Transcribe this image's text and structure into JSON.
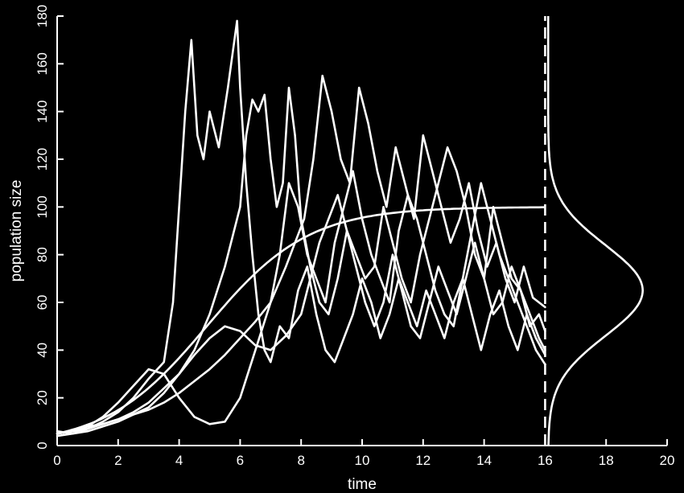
{
  "chart_data": {
    "type": "line",
    "xlabel": "time",
    "ylabel": "population size",
    "xlim": [
      0,
      20
    ],
    "ylim": [
      0,
      180
    ],
    "xticks": [
      0,
      2,
      4,
      6,
      8,
      10,
      12,
      14,
      16,
      18,
      20
    ],
    "yticks": [
      0,
      20,
      40,
      60,
      80,
      100,
      120,
      140,
      160,
      180
    ],
    "logistic": {
      "K": 100,
      "N0": 5,
      "r": 0.6,
      "t_end": 16
    },
    "marker_time": 16,
    "stationary_density": {
      "mean": 65,
      "sd": 19,
      "peak_x": 19.2,
      "base_x": 16.1
    },
    "series": [
      {
        "x": [
          0,
          0.5,
          1,
          1.5,
          2,
          2.5,
          3,
          3.5,
          3.8,
          4,
          4.2,
          4.4,
          4.6,
          4.8,
          5,
          5.3,
          5.6,
          5.9,
          6,
          6.2,
          6.4,
          6.6,
          6.8,
          7,
          7.3,
          7.6,
          7.9,
          8.2,
          8.5,
          8.8,
          9.1,
          9.4,
          9.7,
          10,
          10.3,
          10.6,
          10.9,
          11.2,
          11.5,
          11.8,
          12.1,
          12.4,
          12.7,
          13,
          13.3,
          13.6,
          13.9,
          14.2,
          14.5,
          14.8,
          15.1,
          15.4,
          15.7,
          16
        ],
        "y": [
          6,
          5,
          7,
          10,
          14,
          20,
          28,
          35,
          60,
          100,
          140,
          170,
          130,
          120,
          140,
          125,
          150,
          178,
          150,
          110,
          80,
          55,
          40,
          35,
          50,
          45,
          65,
          75,
          55,
          40,
          35,
          45,
          55,
          70,
          60,
          45,
          55,
          70,
          60,
          50,
          65,
          55,
          45,
          60,
          70,
          55,
          40,
          55,
          65,
          50,
          40,
          55,
          45,
          38
        ]
      },
      {
        "x": [
          0,
          0.5,
          1,
          1.5,
          2,
          2.5,
          3,
          3.5,
          4,
          4.5,
          5,
          5.5,
          6,
          6.2,
          6.4,
          6.6,
          6.8,
          7,
          7.2,
          7.4,
          7.6,
          7.8,
          8,
          8.3,
          8.6,
          8.9,
          9.2,
          9.5,
          9.8,
          10.1,
          10.4,
          10.7,
          11,
          11.3,
          11.6,
          11.9,
          12.2,
          12.5,
          12.8,
          13.1,
          13.4,
          13.7,
          14,
          14.3,
          14.6,
          14.9,
          15.2,
          15.5,
          15.8,
          16
        ],
        "y": [
          5,
          6,
          8,
          9,
          11,
          13,
          16,
          22,
          30,
          40,
          55,
          75,
          100,
          130,
          145,
          140,
          147,
          120,
          100,
          110,
          150,
          130,
          95,
          75,
          60,
          55,
          70,
          90,
          75,
          60,
          50,
          60,
          80,
          65,
          50,
          45,
          60,
          75,
          65,
          55,
          70,
          85,
          70,
          55,
          60,
          75,
          65,
          50,
          55,
          48
        ]
      },
      {
        "x": [
          0,
          0.5,
          1,
          1.5,
          2,
          2.5,
          3,
          3.5,
          4,
          4.5,
          5,
          5.5,
          6,
          6.5,
          7,
          7.5,
          7.8,
          8.1,
          8.4,
          8.7,
          9,
          9.3,
          9.6,
          9.9,
          10.2,
          10.5,
          10.8,
          11.1,
          11.4,
          11.7,
          12,
          12.3,
          12.6,
          12.9,
          13.2,
          13.5,
          13.8,
          14.1,
          14.4,
          14.7,
          15,
          15.3,
          15.6,
          16
        ],
        "y": [
          4,
          5,
          6,
          8,
          10,
          13,
          15,
          18,
          22,
          27,
          32,
          38,
          45,
          52,
          60,
          75,
          85,
          95,
          120,
          155,
          140,
          120,
          110,
          150,
          135,
          115,
          100,
          125,
          110,
          95,
          130,
          115,
          100,
          85,
          95,
          110,
          90,
          75,
          85,
          70,
          60,
          75,
          62,
          58
        ]
      },
      {
        "x": [
          0,
          0.5,
          1,
          1.5,
          2,
          2.5,
          3,
          3.5,
          4,
          4.5,
          5,
          5.5,
          6,
          6.5,
          7,
          7.3,
          7.6,
          7.9,
          8.2,
          8.5,
          8.8,
          9.1,
          9.4,
          9.7,
          10,
          10.3,
          10.6,
          10.9,
          11.2,
          11.5,
          11.8,
          12.1,
          12.4,
          12.7,
          13,
          13.3,
          13.6,
          13.9,
          14.2,
          14.5,
          14.8,
          15.1,
          15.4,
          15.7,
          16
        ],
        "y": [
          5,
          6,
          8,
          12,
          18,
          25,
          32,
          30,
          20,
          12,
          9,
          10,
          20,
          40,
          60,
          80,
          110,
          100,
          80,
          70,
          60,
          85,
          100,
          115,
          95,
          80,
          70,
          60,
          90,
          105,
          95,
          80,
          65,
          55,
          50,
          70,
          90,
          110,
          95,
          80,
          70,
          60,
          50,
          40,
          34
        ]
      },
      {
        "x": [
          0,
          0.5,
          1,
          1.5,
          2,
          2.5,
          3,
          3.5,
          4,
          4.5,
          5,
          5.5,
          6,
          6.5,
          7,
          7.5,
          8,
          8.3,
          8.6,
          8.9,
          9.2,
          9.5,
          9.8,
          10.1,
          10.4,
          10.7,
          11,
          11.3,
          11.6,
          11.9,
          12.2,
          12.5,
          12.8,
          13.1,
          13.4,
          13.7,
          14,
          14.3,
          14.6,
          14.9,
          15.2,
          15.5,
          15.8,
          16
        ],
        "y": [
          5,
          6,
          7,
          9,
          11,
          14,
          18,
          24,
          30,
          38,
          45,
          50,
          48,
          42,
          40,
          46,
          55,
          70,
          85,
          95,
          105,
          90,
          80,
          70,
          75,
          100,
          85,
          70,
          60,
          80,
          95,
          110,
          125,
          115,
          100,
          80,
          70,
          100,
          85,
          70,
          65,
          55,
          45,
          40
        ]
      }
    ]
  }
}
